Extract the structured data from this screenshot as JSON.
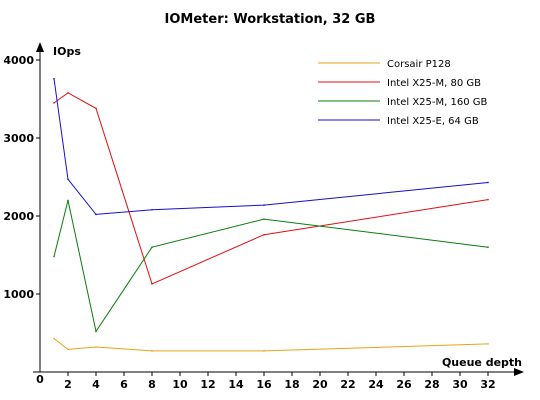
{
  "chart_data": {
    "type": "line",
    "title": "IOMeter: Workstation, 32 GB",
    "ylabel": "IOps",
    "xlabel": "Queue depth",
    "xlim": [
      0,
      32.4
    ],
    "ylim": [
      0,
      4000
    ],
    "x_ticks": [
      2,
      4,
      6,
      8,
      10,
      12,
      14,
      16,
      18,
      20,
      22,
      24,
      26,
      28,
      30,
      32
    ],
    "y_ticks": [
      1000,
      2000,
      3000,
      4000
    ],
    "origin_label": "0",
    "grid": false,
    "legend_position": "top-right",
    "series": [
      {
        "name": "Corsair P128",
        "color": "#e8a317",
        "x": [
          1,
          2,
          4,
          8,
          16,
          32
        ],
        "y": [
          430,
          290,
          320,
          270,
          270,
          360
        ]
      },
      {
        "name": "Intel X25-M, 80 GB",
        "color": "#e01010",
        "x": [
          1,
          2,
          4,
          8,
          16,
          32
        ],
        "y": [
          3450,
          3580,
          3380,
          1130,
          1760,
          2210
        ]
      },
      {
        "name": "Intel X25-M, 160 GB",
        "color": "#0a7d0a",
        "x": [
          1,
          2,
          4,
          8,
          16,
          32
        ],
        "y": [
          1480,
          2200,
          520,
          1600,
          1960,
          1600
        ]
      },
      {
        "name": "Intel X25-E, 64 GB",
        "color": "#1212c8",
        "x": [
          1,
          2,
          4,
          8,
          16,
          32
        ],
        "y": [
          3760,
          2470,
          2020,
          2080,
          2140,
          2430
        ]
      }
    ]
  }
}
